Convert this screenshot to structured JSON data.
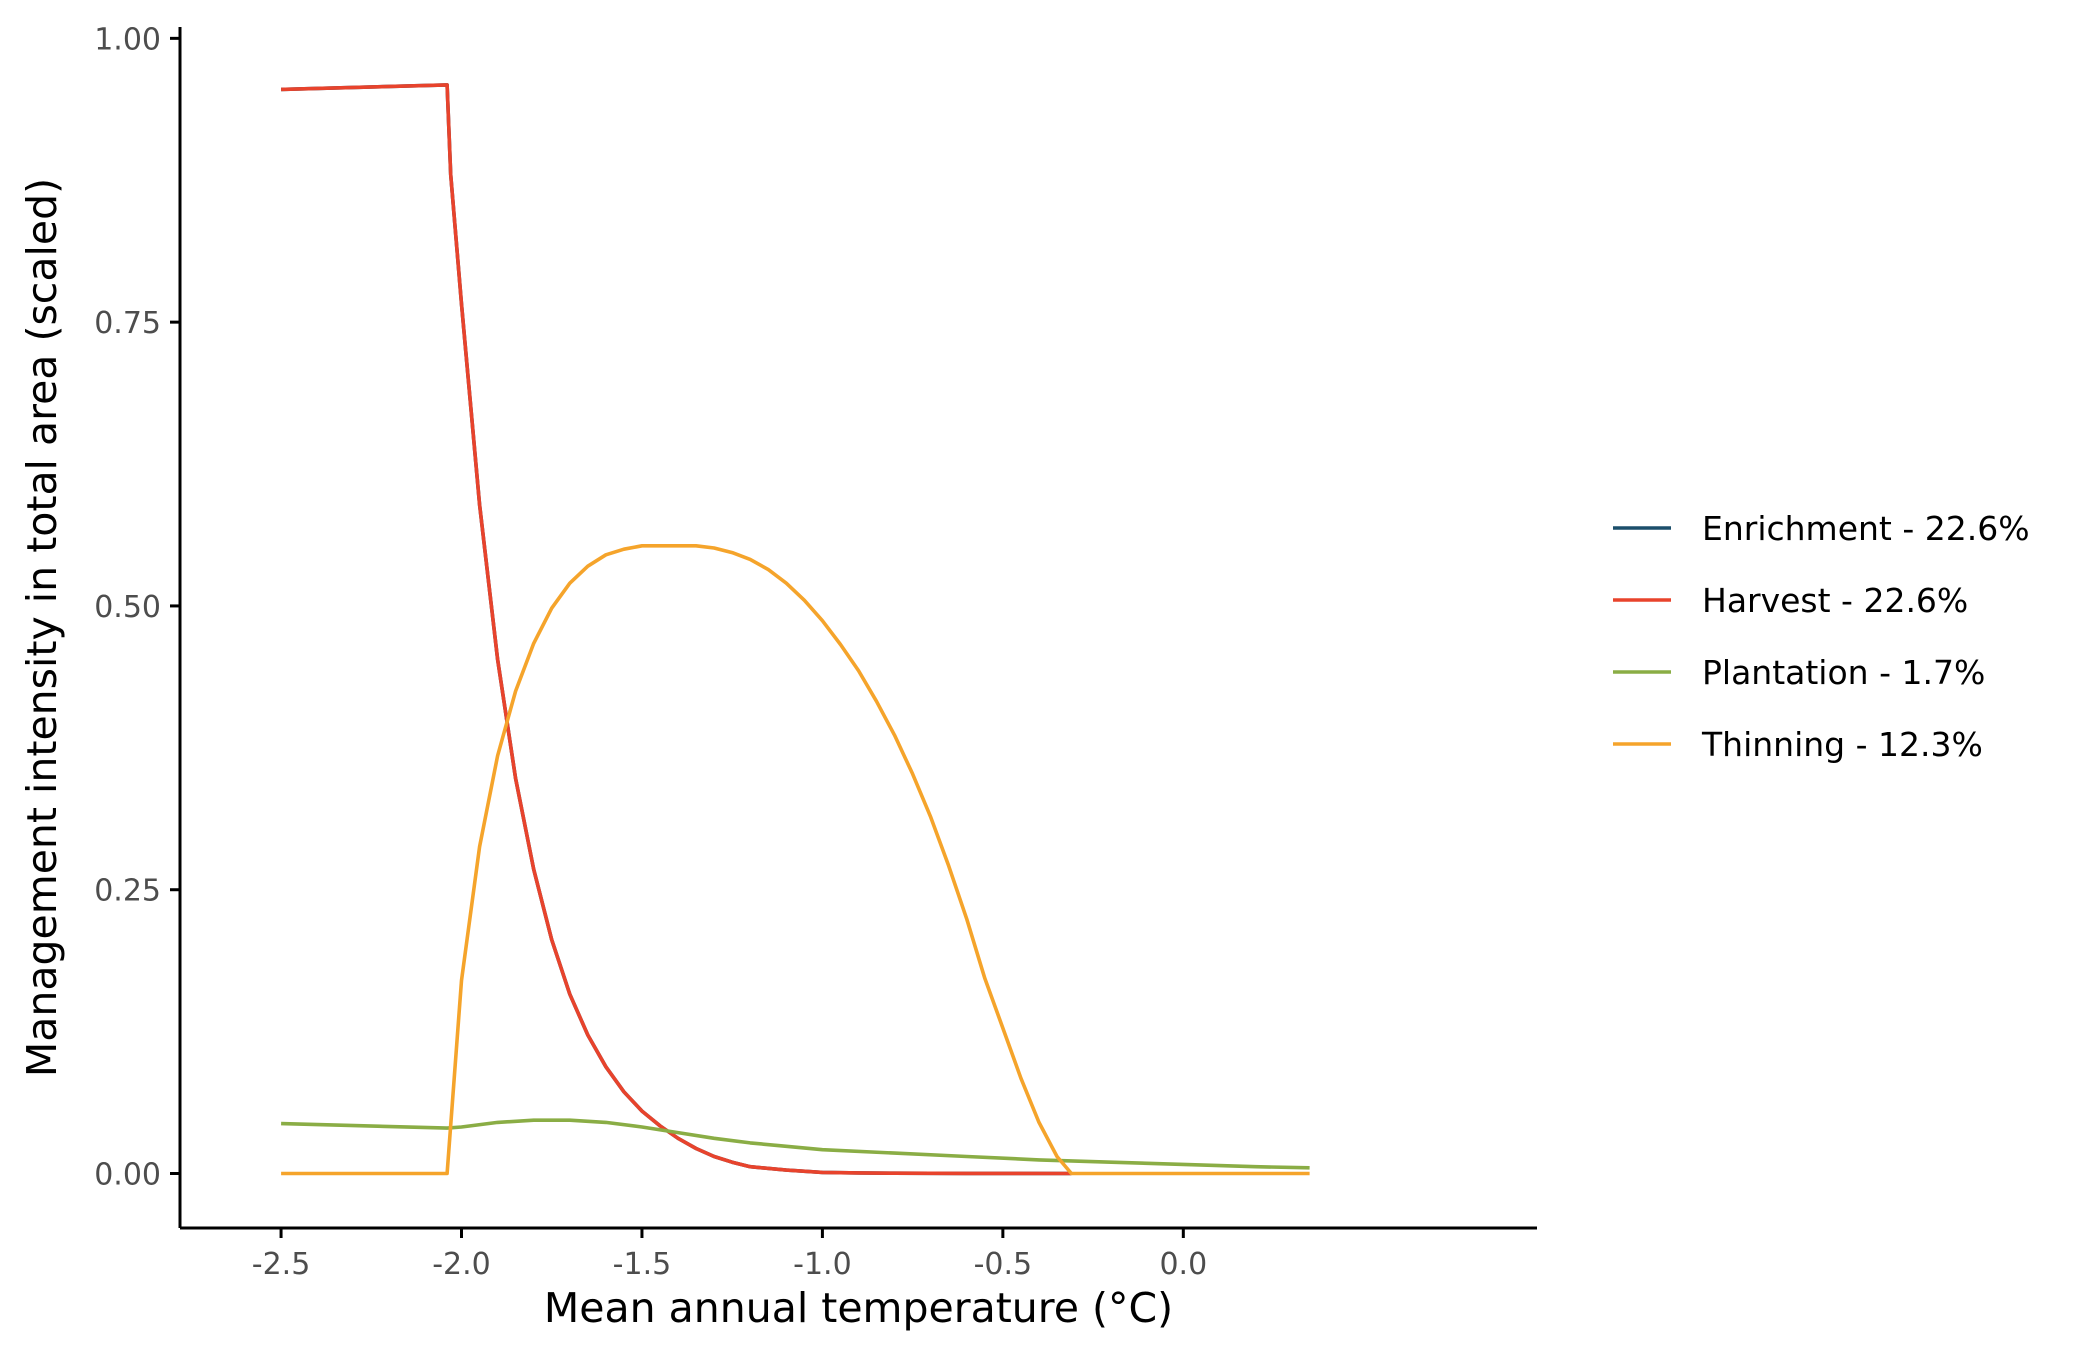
{
  "chart_data": {
    "type": "line",
    "title": "",
    "xlabel": "Mean annual temperature (°C)",
    "ylabel": "Management intensity in total area (scaled)",
    "xlim": [
      -2.78,
      0.98
    ],
    "ylim": [
      -0.048,
      1.01
    ],
    "x_ticks": [
      {
        "value": -2.5,
        "label": "-2.5"
      },
      {
        "value": -2.0,
        "label": "-2.0"
      },
      {
        "value": -1.5,
        "label": "-1.5"
      },
      {
        "value": -1.0,
        "label": "-1.0"
      },
      {
        "value": -0.5,
        "label": "-0.5"
      },
      {
        "value": 0.0,
        "label": "0.0"
      }
    ],
    "y_ticks": [
      {
        "value": 0.0,
        "label": "0.00"
      },
      {
        "value": 0.25,
        "label": "0.25"
      },
      {
        "value": 0.5,
        "label": "0.50"
      },
      {
        "value": 0.75,
        "label": "0.75"
      },
      {
        "value": 1.0,
        "label": "1.00"
      }
    ],
    "grid": false,
    "legend_position": "right",
    "series": [
      {
        "name": "Enrichment - 22.6%",
        "color": "#1b4f6b",
        "x": [
          -2.5,
          -2.04,
          -2.03,
          -2.0,
          -1.95,
          -1.9,
          -1.85,
          -1.8,
          -1.75,
          -1.7,
          -1.65,
          -1.6,
          -1.55,
          -1.5,
          -1.45,
          -1.4,
          -1.35,
          -1.3,
          -1.25,
          -1.2,
          -1.1,
          -1.0,
          -0.9,
          -0.8,
          -0.6,
          -0.31
        ],
        "y": [
          0.955,
          0.959,
          0.88,
          0.766,
          0.589,
          0.453,
          0.348,
          0.268,
          0.206,
          0.158,
          0.122,
          0.094,
          0.072,
          0.055,
          0.042,
          0.031,
          0.022,
          0.015,
          0.01,
          0.006,
          0.003,
          0.001,
          0.0005,
          0.0003,
          0.0001,
          0.0
        ]
      },
      {
        "name": "Harvest - 22.6%",
        "color": "#e8432c",
        "x": [
          -2.5,
          -2.04,
          -2.03,
          -2.0,
          -1.95,
          -1.9,
          -1.85,
          -1.8,
          -1.75,
          -1.7,
          -1.65,
          -1.6,
          -1.55,
          -1.5,
          -1.45,
          -1.4,
          -1.35,
          -1.3,
          -1.25,
          -1.2,
          -1.1,
          -1.0,
          -0.9,
          -0.8,
          -0.6,
          -0.31
        ],
        "y": [
          0.955,
          0.959,
          0.88,
          0.766,
          0.589,
          0.453,
          0.348,
          0.268,
          0.206,
          0.158,
          0.122,
          0.094,
          0.072,
          0.055,
          0.042,
          0.031,
          0.022,
          0.015,
          0.01,
          0.006,
          0.003,
          0.001,
          0.0005,
          0.0003,
          0.0001,
          0.0
        ]
      },
      {
        "name": "Plantation - 1.7%",
        "color": "#8aad45",
        "x": [
          -2.5,
          -2.04,
          -2.0,
          -1.9,
          -1.8,
          -1.7,
          -1.6,
          -1.5,
          -1.4,
          -1.3,
          -1.2,
          -1.1,
          -1.0,
          -0.8,
          -0.6,
          -0.4,
          -0.2,
          0.0,
          0.2,
          0.35
        ],
        "y": [
          0.044,
          0.04,
          0.041,
          0.045,
          0.047,
          0.047,
          0.045,
          0.041,
          0.036,
          0.031,
          0.027,
          0.024,
          0.021,
          0.018,
          0.015,
          0.012,
          0.01,
          0.008,
          0.006,
          0.005
        ]
      },
      {
        "name": "Thinning - 12.3%",
        "color": "#f5a42b",
        "x": [
          -2.5,
          -2.04,
          -2.0,
          -1.95,
          -1.9,
          -1.85,
          -1.8,
          -1.75,
          -1.7,
          -1.65,
          -1.6,
          -1.55,
          -1.5,
          -1.45,
          -1.4,
          -1.35,
          -1.3,
          -1.25,
          -1.2,
          -1.15,
          -1.1,
          -1.05,
          -1.0,
          -0.95,
          -0.9,
          -0.85,
          -0.8,
          -0.75,
          -0.7,
          -0.65,
          -0.6,
          -0.55,
          -0.5,
          -0.45,
          -0.4,
          -0.35,
          -0.31,
          0.35
        ],
        "y": [
          0.0,
          0.0,
          0.17,
          0.288,
          0.368,
          0.425,
          0.467,
          0.498,
          0.52,
          0.535,
          0.545,
          0.55,
          0.553,
          0.553,
          0.553,
          0.553,
          0.551,
          0.547,
          0.541,
          0.532,
          0.52,
          0.505,
          0.487,
          0.466,
          0.443,
          0.416,
          0.386,
          0.352,
          0.314,
          0.271,
          0.224,
          0.172,
          0.128,
          0.084,
          0.045,
          0.015,
          0.0,
          0.0
        ]
      }
    ]
  }
}
